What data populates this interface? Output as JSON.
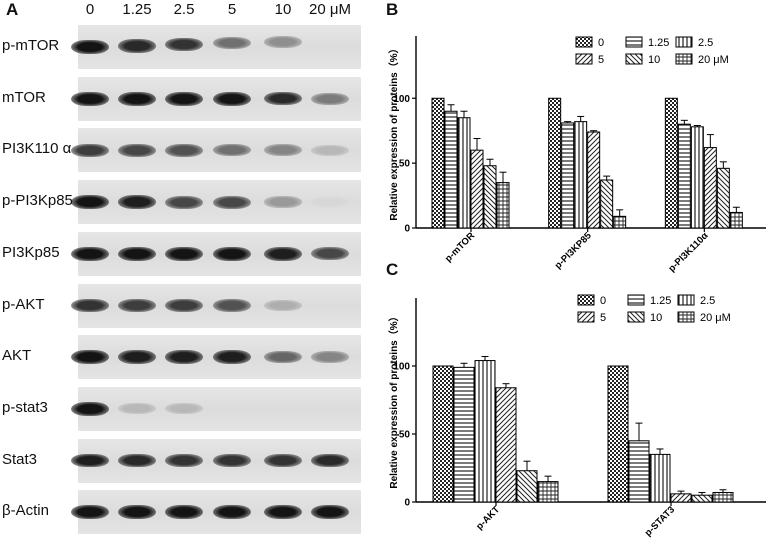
{
  "panels": {
    "A": "A",
    "B": "B",
    "C": "C"
  },
  "western_blot": {
    "lanes": [
      "0",
      "1.25",
      "2.5",
      "5",
      "10",
      "20 μM"
    ],
    "rows": [
      {
        "label": "p-mTOR",
        "levels": [
          1.0,
          0.9,
          0.85,
          0.55,
          0.4,
          0.0
        ]
      },
      {
        "label": "mTOR",
        "levels": [
          1.0,
          1.0,
          1.0,
          1.0,
          0.9,
          0.5
        ]
      },
      {
        "label": "PI3K110 α",
        "levels": [
          0.8,
          0.75,
          0.7,
          0.55,
          0.45,
          0.2
        ]
      },
      {
        "label": "p-PI3Kp85",
        "levels": [
          1.0,
          0.95,
          0.75,
          0.75,
          0.35,
          0.05
        ]
      },
      {
        "label": "PI3Kp85",
        "levels": [
          1.0,
          1.0,
          1.0,
          1.0,
          0.95,
          0.75
        ]
      },
      {
        "label": "p-AKT",
        "levels": [
          0.85,
          0.8,
          0.8,
          0.7,
          0.25,
          0.0
        ]
      },
      {
        "label": "AKT",
        "levels": [
          1.0,
          0.95,
          0.95,
          0.95,
          0.6,
          0.45
        ]
      },
      {
        "label": "p-stat3",
        "levels": [
          1.0,
          0.2,
          0.2,
          0.0,
          0.0,
          0.0
        ]
      },
      {
        "label": "Stat3",
        "levels": [
          0.95,
          0.9,
          0.85,
          0.85,
          0.85,
          0.9
        ]
      },
      {
        "label": "β-Actin",
        "levels": [
          1.0,
          1.0,
          1.0,
          1.0,
          1.0,
          1.0
        ]
      }
    ]
  },
  "chart_data": [
    {
      "type": "bar",
      "panel": "B",
      "ylabel": "Relative expression of proteins（%）",
      "categories": [
        "p-mTOR",
        "p-PI3KP85",
        "p-PI3K110α"
      ],
      "yticks": [
        0,
        50,
        100
      ],
      "ylim": [
        0,
        148
      ],
      "legend_placement": "top-right",
      "series": [
        {
          "name": "0",
          "values": [
            100,
            100,
            100
          ],
          "errors": [
            0,
            0,
            0
          ]
        },
        {
          "name": "1.25",
          "values": [
            90,
            81,
            80
          ],
          "errors": [
            5,
            1,
            3
          ]
        },
        {
          "name": "2.5",
          "values": [
            85,
            82,
            78
          ],
          "errors": [
            5,
            4,
            1
          ]
        },
        {
          "name": "5",
          "values": [
            60,
            74,
            62
          ],
          "errors": [
            9,
            1,
            10
          ]
        },
        {
          "name": "10",
          "values": [
            48,
            37,
            46
          ],
          "errors": [
            5,
            3,
            5
          ]
        },
        {
          "name": "20 μM",
          "values": [
            35,
            9,
            12
          ],
          "errors": [
            8,
            5,
            4
          ]
        }
      ]
    },
    {
      "type": "bar",
      "panel": "C",
      "ylabel": "Relative expression of proteins（%）",
      "categories": [
        "p-AKT",
        "p-STAT3"
      ],
      "yticks": [
        0,
        50,
        100
      ],
      "ylim": [
        0,
        150
      ],
      "legend_placement": "top-right",
      "series": [
        {
          "name": "0",
          "values": [
            100,
            100
          ],
          "errors": [
            0,
            0
          ]
        },
        {
          "name": "1.25",
          "values": [
            99,
            45
          ],
          "errors": [
            3,
            13
          ]
        },
        {
          "name": "2.5",
          "values": [
            104,
            35
          ],
          "errors": [
            3,
            4
          ]
        },
        {
          "name": "5",
          "values": [
            84,
            6
          ],
          "errors": [
            3,
            2
          ]
        },
        {
          "name": "10",
          "values": [
            23,
            5
          ],
          "errors": [
            7,
            2
          ]
        },
        {
          "name": "20 μM",
          "values": [
            15,
            7
          ],
          "errors": [
            4,
            2
          ]
        }
      ]
    }
  ],
  "patterns": [
    "pat-check",
    "pat-hlines",
    "pat-vlines",
    "pat-diag",
    "pat-diag2",
    "pat-grid"
  ]
}
